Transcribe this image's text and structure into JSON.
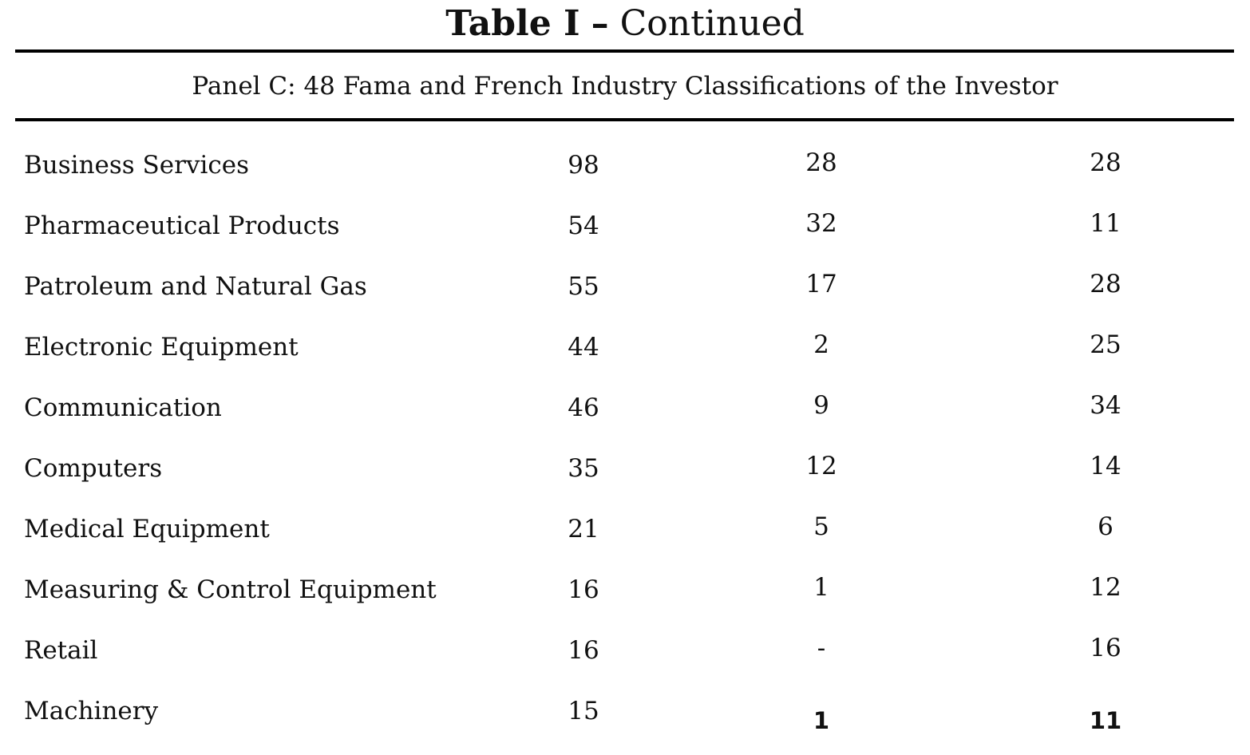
{
  "title": {
    "bold": "Table I",
    "separator": "–",
    "rest": "Continued"
  },
  "panel": {
    "heading": "Panel C: 48 Fama and French Industry Classifications of the Investor"
  },
  "table": {
    "rows": [
      {
        "label": "Business Services",
        "v1": "98",
        "v2": "28",
        "v3": "28"
      },
      {
        "label": "Pharmaceutical Products",
        "v1": "54",
        "v2": "32",
        "v3": "11"
      },
      {
        "label": "Patroleum and Natural Gas",
        "v1": "55",
        "v2": "17",
        "v3": "28"
      },
      {
        "label": "Electronic Equipment",
        "v1": "44",
        "v2": "2",
        "v3": "25"
      },
      {
        "label": "Communication",
        "v1": "46",
        "v2": "9",
        "v3": "34"
      },
      {
        "label": "Computers",
        "v1": "35",
        "v2": "12",
        "v3": "14"
      },
      {
        "label": "Medical Equipment",
        "v1": "21",
        "v2": "5",
        "v3": "6"
      },
      {
        "label": "Measuring & Control Equipment",
        "v1": "16",
        "v2": "1",
        "v3": "12"
      },
      {
        "label": "Retail",
        "v1": "16",
        "v2": "-",
        "v3": "16"
      },
      {
        "label": "Machinery",
        "v1": "15",
        "v2": "1",
        "v3": "11"
      }
    ]
  }
}
